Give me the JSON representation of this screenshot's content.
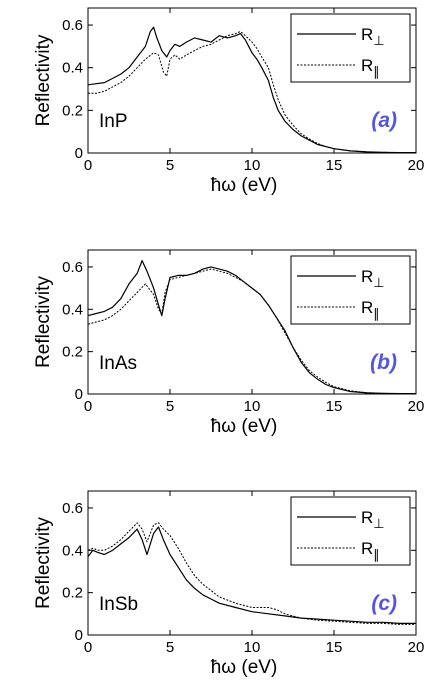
{
  "chart_data": [
    {
      "type": "line",
      "panel_label": "(a)",
      "material": "InP",
      "xlabel": "ħω (eV)",
      "ylabel": "Reflectivity",
      "xlim": [
        0,
        20
      ],
      "ylim": [
        0,
        0.68
      ],
      "xticks": [
        0,
        5,
        10,
        15,
        20
      ],
      "yticks": [
        0,
        0.2,
        0.4,
        0.6
      ],
      "legend_position": "top-right",
      "grid": false,
      "series": [
        {
          "name": "R⊥",
          "style": "solid",
          "x": [
            0,
            0.5,
            1,
            1.5,
            2,
            2.5,
            3,
            3.5,
            3.8,
            4,
            4.2,
            4.5,
            4.8,
            5,
            5.3,
            5.6,
            6,
            6.5,
            7,
            7.5,
            8,
            8.5,
            9,
            9.3,
            9.6,
            10,
            10.3,
            10.6,
            11,
            11.3,
            11.6,
            12,
            12.5,
            13,
            13.5,
            14,
            14.5,
            15,
            16,
            17,
            18,
            19,
            20
          ],
          "y": [
            0.32,
            0.325,
            0.33,
            0.35,
            0.37,
            0.4,
            0.45,
            0.5,
            0.57,
            0.59,
            0.54,
            0.48,
            0.45,
            0.48,
            0.51,
            0.5,
            0.52,
            0.54,
            0.53,
            0.52,
            0.55,
            0.54,
            0.55,
            0.56,
            0.53,
            0.47,
            0.44,
            0.4,
            0.34,
            0.26,
            0.2,
            0.15,
            0.11,
            0.08,
            0.06,
            0.04,
            0.03,
            0.02,
            0.01,
            0.005,
            0.003,
            0.002,
            0.002
          ]
        },
        {
          "name": "R∥",
          "style": "dashed",
          "x": [
            0,
            0.5,
            1,
            1.5,
            2,
            2.5,
            3,
            3.5,
            4,
            4.3,
            4.6,
            4.8,
            5,
            5.3,
            5.6,
            6,
            6.5,
            7,
            7.5,
            8,
            8.5,
            9,
            9.3,
            9.6,
            10,
            10.3,
            10.6,
            11,
            11.3,
            11.6,
            12,
            12.5,
            13,
            13.5,
            14,
            14.5,
            15,
            16,
            17,
            18,
            19,
            20
          ],
          "y": [
            0.28,
            0.28,
            0.29,
            0.31,
            0.33,
            0.36,
            0.4,
            0.44,
            0.47,
            0.46,
            0.38,
            0.36,
            0.44,
            0.46,
            0.44,
            0.46,
            0.48,
            0.5,
            0.51,
            0.53,
            0.55,
            0.56,
            0.57,
            0.55,
            0.52,
            0.49,
            0.45,
            0.4,
            0.32,
            0.25,
            0.18,
            0.13,
            0.09,
            0.065,
            0.045,
            0.03,
            0.02,
            0.01,
            0.005,
            0.003,
            0.002,
            0.002
          ]
        }
      ]
    },
    {
      "type": "line",
      "panel_label": "(b)",
      "material": "InAs",
      "xlabel": "ħω (eV)",
      "ylabel": "Reflectivity",
      "xlim": [
        0,
        20
      ],
      "ylim": [
        0,
        0.68
      ],
      "xticks": [
        0,
        5,
        10,
        15,
        20
      ],
      "yticks": [
        0,
        0.2,
        0.4,
        0.6
      ],
      "legend_position": "top-right",
      "grid": false,
      "series": [
        {
          "name": "R⊥",
          "style": "solid",
          "x": [
            0,
            0.5,
            1,
            1.5,
            2,
            2.5,
            3,
            3.3,
            3.6,
            4,
            4.3,
            4.5,
            4.7,
            5,
            5.5,
            6,
            6.5,
            7,
            7.5,
            8,
            8.5,
            9,
            9.5,
            10,
            10.5,
            11,
            11.5,
            12,
            12.5,
            13,
            13.5,
            14,
            14.5,
            15,
            16,
            17,
            18,
            19,
            20
          ],
          "y": [
            0.37,
            0.38,
            0.39,
            0.41,
            0.45,
            0.52,
            0.57,
            0.63,
            0.58,
            0.5,
            0.42,
            0.37,
            0.45,
            0.55,
            0.56,
            0.56,
            0.57,
            0.59,
            0.6,
            0.59,
            0.58,
            0.56,
            0.53,
            0.5,
            0.47,
            0.42,
            0.36,
            0.3,
            0.22,
            0.15,
            0.1,
            0.07,
            0.045,
            0.03,
            0.012,
            0.005,
            0.003,
            0.002,
            0.002
          ]
        },
        {
          "name": "R∥",
          "style": "dashed",
          "x": [
            0,
            0.5,
            1,
            1.5,
            2,
            2.5,
            3,
            3.5,
            4,
            4.3,
            4.5,
            4.7,
            5,
            5.5,
            6,
            6.5,
            7,
            7.5,
            8,
            8.5,
            9,
            9.5,
            10,
            10.5,
            11,
            11.5,
            12,
            12.5,
            13,
            13.5,
            14,
            14.5,
            15,
            16,
            17,
            18,
            19,
            20
          ],
          "y": [
            0.33,
            0.34,
            0.35,
            0.37,
            0.4,
            0.44,
            0.48,
            0.52,
            0.47,
            0.4,
            0.38,
            0.48,
            0.54,
            0.55,
            0.56,
            0.57,
            0.58,
            0.59,
            0.58,
            0.57,
            0.55,
            0.53,
            0.5,
            0.47,
            0.42,
            0.36,
            0.29,
            0.22,
            0.16,
            0.11,
            0.08,
            0.055,
            0.035,
            0.015,
            0.006,
            0.003,
            0.002,
            0.002
          ]
        }
      ]
    },
    {
      "type": "line",
      "panel_label": "(c)",
      "material": "InSb",
      "xlabel": "ħω (eV)",
      "ylabel": "Reflectivity",
      "xlim": [
        0,
        20
      ],
      "ylim": [
        0,
        0.68
      ],
      "xticks": [
        0,
        5,
        10,
        15,
        20
      ],
      "yticks": [
        0,
        0.2,
        0.4,
        0.6
      ],
      "legend_position": "top-right",
      "grid": false,
      "series": [
        {
          "name": "R⊥",
          "style": "solid",
          "x": [
            0,
            0.3,
            0.6,
            1,
            1.5,
            2,
            2.5,
            3,
            3.3,
            3.6,
            4,
            4.3,
            4.6,
            5,
            5.5,
            6,
            6.5,
            7,
            7.5,
            8,
            9,
            10,
            11,
            12,
            13,
            14,
            15,
            16,
            17,
            18,
            19,
            20
          ],
          "y": [
            0.37,
            0.4,
            0.39,
            0.38,
            0.4,
            0.43,
            0.46,
            0.5,
            0.45,
            0.38,
            0.48,
            0.51,
            0.45,
            0.38,
            0.32,
            0.26,
            0.22,
            0.19,
            0.17,
            0.15,
            0.13,
            0.11,
            0.1,
            0.09,
            0.08,
            0.075,
            0.07,
            0.065,
            0.06,
            0.06,
            0.055,
            0.055
          ]
        },
        {
          "name": "R∥",
          "style": "dashed",
          "x": [
            0,
            0.3,
            0.6,
            1,
            1.5,
            2,
            2.5,
            3,
            3.3,
            3.6,
            4,
            4.3,
            4.6,
            5,
            5.5,
            6,
            6.5,
            7,
            7.5,
            8,
            9,
            10,
            11,
            11.5,
            12,
            13,
            14,
            15,
            16,
            17,
            18,
            19,
            20
          ],
          "y": [
            0.4,
            0.41,
            0.4,
            0.4,
            0.42,
            0.45,
            0.49,
            0.53,
            0.5,
            0.44,
            0.52,
            0.53,
            0.5,
            0.47,
            0.41,
            0.34,
            0.28,
            0.24,
            0.21,
            0.18,
            0.15,
            0.13,
            0.13,
            0.12,
            0.1,
            0.08,
            0.07,
            0.065,
            0.06,
            0.055,
            0.055,
            0.05,
            0.05
          ]
        }
      ]
    }
  ],
  "colors": {
    "axis": "#000000",
    "panel_label": "#5555e0",
    "series_solid": "#000000",
    "series_dashed": "#000000"
  }
}
